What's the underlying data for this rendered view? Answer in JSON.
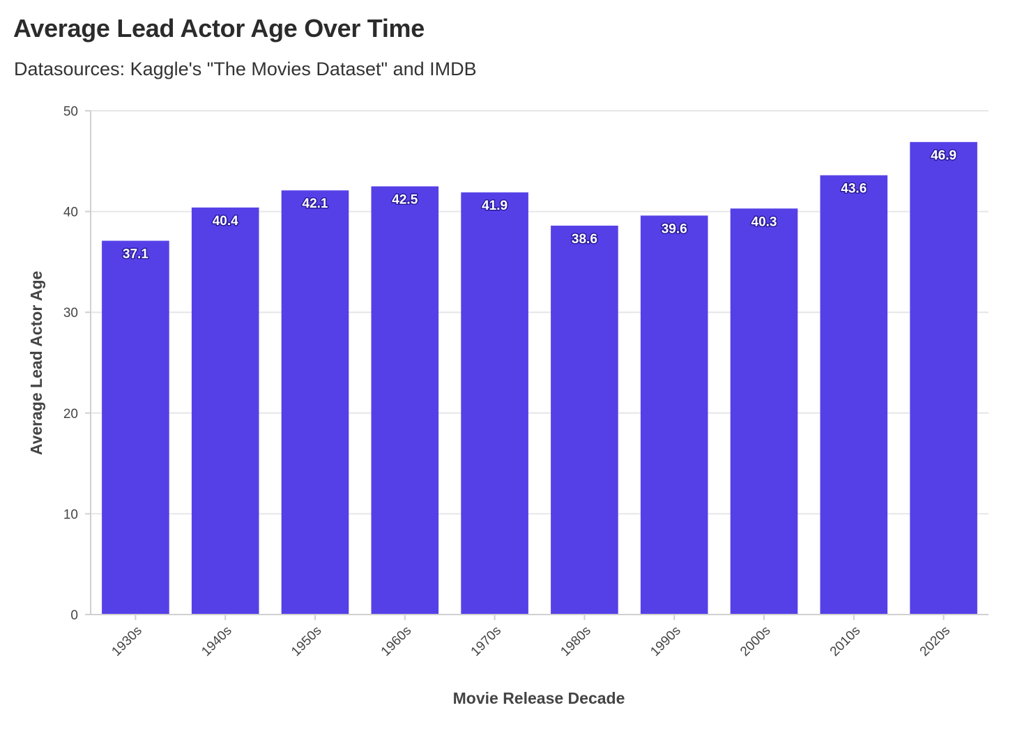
{
  "chart_data": {
    "type": "bar",
    "title": "Average Lead Actor Age Over Time",
    "subtitle": "Datasources: Kaggle's \"The Movies Dataset\" and IMDB",
    "xlabel": "Movie Release Decade",
    "ylabel": "Average Lead Actor Age",
    "categories": [
      "1930s",
      "1940s",
      "1950s",
      "1960s",
      "1970s",
      "1980s",
      "1990s",
      "2000s",
      "2010s",
      "2020s"
    ],
    "values": [
      37.1,
      40.4,
      42.1,
      42.5,
      41.9,
      38.6,
      39.6,
      40.3,
      43.6,
      46.9
    ],
    "data_labels": [
      "37.1",
      "40.4",
      "42.1",
      "42.5",
      "41.9",
      "38.6",
      "39.6",
      "40.3",
      "43.6",
      "46.9"
    ],
    "ylim": [
      0,
      50
    ],
    "yticks": [
      0,
      10,
      20,
      30,
      40,
      50
    ],
    "ytick_labels": [
      "0",
      "10",
      "20",
      "30",
      "40",
      "50"
    ],
    "grid": "horizontal",
    "legend": "none",
    "colors": {
      "bar": "#5540e8",
      "grid": "#e6e6e6",
      "axis": "#d0d0d0"
    }
  }
}
